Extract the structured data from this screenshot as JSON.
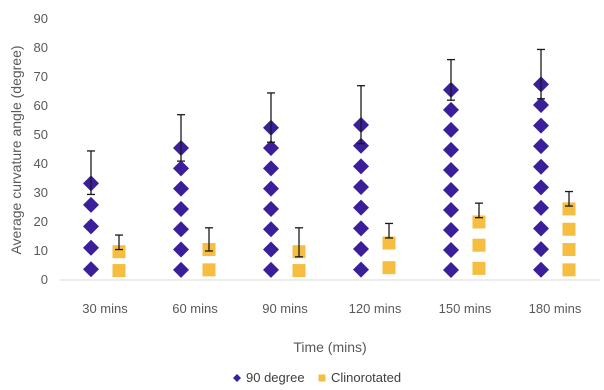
{
  "chart_data": {
    "type": "bar",
    "title": "",
    "xlabel": "Time (mins)",
    "ylabel": "Average curvature angle (degree)",
    "ylim": [
      0,
      90
    ],
    "yticks": [
      0,
      10,
      20,
      30,
      40,
      50,
      60,
      70,
      80,
      90
    ],
    "categories": [
      "30 mins",
      "60 mins",
      "90 mins",
      "120 mins",
      "150 mins",
      "180 mins"
    ],
    "grid": false,
    "legend_position": "bottom",
    "series": [
      {
        "name": "90 degree",
        "marker": "diamond",
        "color": "#3B1F9A",
        "values": [
          37,
          49,
          56,
          57,
          69,
          71
        ],
        "error": [
          7.5,
          8,
          8.5,
          10,
          7,
          8.5
        ]
      },
      {
        "name": "Clinorotated",
        "marker": "square",
        "color": "#F5BE41",
        "values": [
          13,
          14,
          13,
          17,
          24,
          28
        ],
        "error": [
          2.5,
          4,
          5,
          2.5,
          2.5,
          2.5
        ]
      }
    ]
  }
}
